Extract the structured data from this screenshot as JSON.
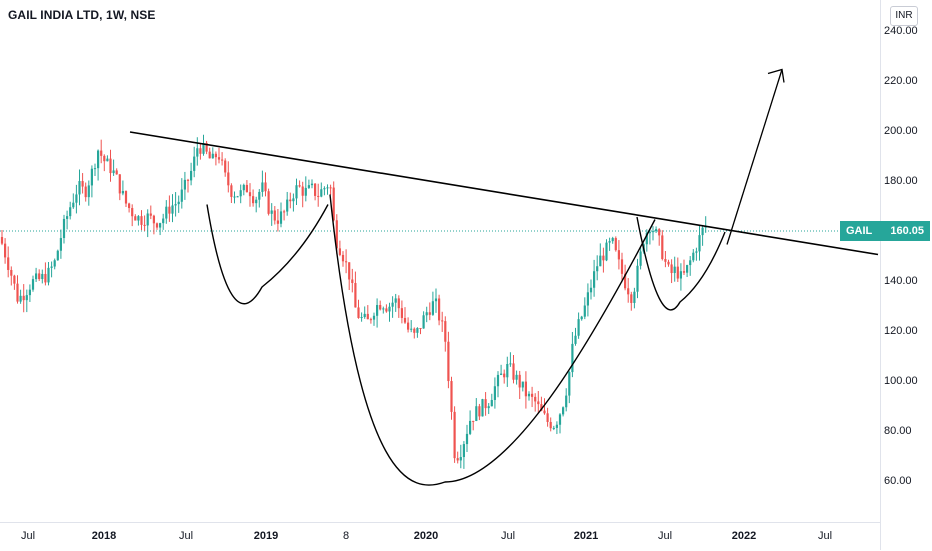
{
  "title": "GAIL INDIA LTD, 1W, NSE",
  "currency": "INR",
  "symbol": "GAIL",
  "last_price": "160.05",
  "colors": {
    "up": "#26a69a",
    "down": "#ef5350",
    "line": "#000000",
    "last": "#26a69a"
  },
  "chart_data": {
    "type": "candlestick",
    "ylim": [
      45,
      245
    ],
    "yticks": [
      "240.00",
      "220.00",
      "200.00",
      "180.00",
      "160.00",
      "140.00",
      "120.00",
      "100.00",
      "80.00",
      "60.00"
    ],
    "xticks": [
      "Jul",
      "2018",
      "Jul",
      "2019",
      "8",
      "2020",
      "Jul",
      "2021",
      "Jul",
      "2022",
      "Jul"
    ],
    "grid": false,
    "last_value": 160.05,
    "price_path": [
      [
        0,
        158
      ],
      [
        10,
        145
      ],
      [
        18,
        133
      ],
      [
        25,
        136
      ],
      [
        32,
        140
      ],
      [
        40,
        141
      ],
      [
        48,
        143
      ],
      [
        55,
        148
      ],
      [
        62,
        160
      ],
      [
        70,
        170
      ],
      [
        78,
        178
      ],
      [
        85,
        176
      ],
      [
        92,
        184
      ],
      [
        98,
        193
      ],
      [
        105,
        188
      ],
      [
        112,
        185
      ],
      [
        118,
        180
      ],
      [
        125,
        172
      ],
      [
        132,
        168
      ],
      [
        140,
        165
      ],
      [
        148,
        166
      ],
      [
        155,
        164
      ],
      [
        162,
        165
      ],
      [
        170,
        170
      ],
      [
        178,
        172
      ],
      [
        185,
        178
      ],
      [
        192,
        185
      ],
      [
        198,
        195
      ],
      [
        205,
        192
      ],
      [
        212,
        188
      ],
      [
        218,
        192
      ],
      [
        225,
        182
      ],
      [
        232,
        176
      ],
      [
        240,
        175
      ],
      [
        248,
        178
      ],
      [
        255,
        173
      ],
      [
        262,
        178
      ],
      [
        270,
        168
      ],
      [
        277,
        165
      ],
      [
        285,
        168
      ],
      [
        292,
        175
      ],
      [
        298,
        178
      ],
      [
        305,
        176
      ],
      [
        312,
        177
      ],
      [
        318,
        175
      ],
      [
        325,
        178
      ],
      [
        330,
        180
      ],
      [
        335,
        158
      ],
      [
        342,
        152
      ],
      [
        350,
        142
      ],
      [
        356,
        128
      ],
      [
        362,
        125
      ],
      [
        368,
        124
      ],
      [
        375,
        130
      ],
      [
        382,
        132
      ],
      [
        388,
        130
      ],
      [
        395,
        133
      ],
      [
        402,
        127
      ],
      [
        408,
        121
      ],
      [
        415,
        118
      ],
      [
        422,
        124
      ],
      [
        428,
        129
      ],
      [
        435,
        132
      ],
      [
        440,
        125
      ],
      [
        445,
        118
      ],
      [
        450,
        95
      ],
      [
        455,
        70
      ],
      [
        460,
        72
      ],
      [
        465,
        78
      ],
      [
        470,
        85
      ],
      [
        476,
        88
      ],
      [
        482,
        90
      ],
      [
        488,
        92
      ],
      [
        495,
        98
      ],
      [
        502,
        103
      ],
      [
        508,
        106
      ],
      [
        515,
        102
      ],
      [
        522,
        98
      ],
      [
        528,
        94
      ],
      [
        535,
        92
      ],
      [
        542,
        87
      ],
      [
        548,
        84
      ],
      [
        555,
        83
      ],
      [
        562,
        90
      ],
      [
        568,
        100
      ],
      [
        573,
        115
      ],
      [
        578,
        122
      ],
      [
        585,
        130
      ],
      [
        592,
        140
      ],
      [
        598,
        148
      ],
      [
        605,
        152
      ],
      [
        612,
        156
      ],
      [
        618,
        148
      ],
      [
        625,
        140
      ],
      [
        632,
        134
      ],
      [
        638,
        145
      ],
      [
        644,
        158
      ],
      [
        650,
        163
      ],
      [
        655,
        160
      ],
      [
        660,
        155
      ],
      [
        665,
        148
      ],
      [
        670,
        143
      ],
      [
        676,
        145
      ],
      [
        682,
        141
      ],
      [
        688,
        146
      ],
      [
        694,
        152
      ],
      [
        700,
        158
      ],
      [
        705,
        163
      ],
      [
        708,
        160
      ]
    ],
    "annotations": [
      {
        "type": "trendline",
        "from": [
          130,
          200
        ],
        "to": [
          878,
          151
        ]
      },
      {
        "type": "arc-cup",
        "label": ""
      },
      {
        "type": "arrow",
        "from": [
          727,
          155
        ],
        "to": [
          782,
          225
        ]
      }
    ]
  }
}
